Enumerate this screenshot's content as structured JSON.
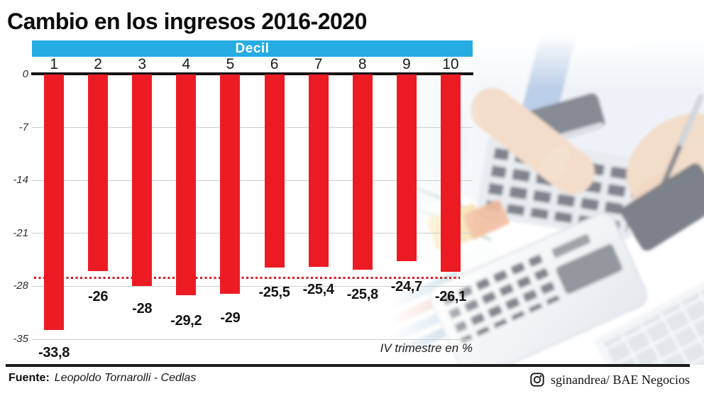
{
  "title": "Cambio en los ingresos 2016-2020",
  "chart_data": {
    "type": "bar",
    "title": "Cambio en los ingresos 2016-2020",
    "group_label": "Decil",
    "categories": [
      "1",
      "2",
      "3",
      "4",
      "5",
      "6",
      "7",
      "8",
      "9",
      "10"
    ],
    "values": [
      -33.8,
      -26,
      -28,
      -29.2,
      -29,
      -25.5,
      -25.4,
      -25.8,
      -24.7,
      -26.1
    ],
    "value_labels": [
      "-33,8",
      "-26",
      "-28",
      "-29,2",
      "-29",
      "-25,5",
      "-25,4",
      "-25,8",
      "-24,7",
      "-26,1"
    ],
    "y_ticks": [
      0,
      -7,
      -14,
      -21,
      -28,
      -35
    ],
    "y_tick_labels": [
      "0",
      "-7",
      "-14",
      "-21",
      "-28",
      "-35"
    ],
    "ylim": [
      -35,
      0
    ],
    "grid": true,
    "reference_line_value": -26.9,
    "unit_note": "IV trimestre en %",
    "colors": {
      "bar": "#EC1B23",
      "header_band": "#25ACE3",
      "reference_line": "#E1131C",
      "grid_line": "#CDCDCD",
      "axis_line": "#121212"
    }
  },
  "footer": {
    "source_label": "Fuente:",
    "source_value": "Leopoldo Tornarolli - Cedlas",
    "credit_icon": "instagram-icon",
    "credit": "sginandrea/ BAE Negocios"
  }
}
